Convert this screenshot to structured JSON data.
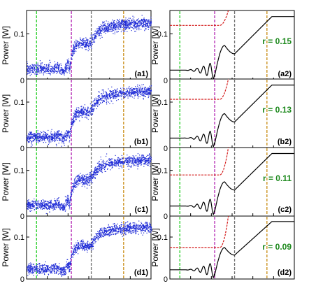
{
  "figure": {
    "y_axis_label": "Power [W]",
    "y_ticks": [
      {
        "value": 0,
        "label": "0"
      },
      {
        "value": 0.1,
        "label": "0.1"
      }
    ],
    "colors": {
      "data_points": "#1f2bd6",
      "model_curve": "#000000",
      "red_curve": "#d41a1a",
      "green_marker": "#22cc22",
      "magenta_marker": "#b020b0",
      "gray_marker": "#707070",
      "orange_marker": "#c88a10",
      "r_text": "#1f8a1f"
    }
  },
  "chart_data": [
    {
      "type": "scatter",
      "panel": "(a1)",
      "ylim": [
        0,
        0.15
      ],
      "xlim": [
        0,
        1
      ],
      "markers_x": [
        0.08,
        0.36,
        0.52,
        0.78
      ]
    },
    {
      "type": "line",
      "panel": "(a2)",
      "r_label": "r = 0.15",
      "ylim": [
        0,
        0.15
      ],
      "xlim": [
        0,
        1
      ],
      "red_plateau": 0.118,
      "markers_x": [
        0.08,
        0.36,
        0.52,
        0.78
      ]
    },
    {
      "type": "scatter",
      "panel": "(b1)",
      "ylim": [
        0,
        0.15
      ],
      "xlim": [
        0,
        1
      ],
      "markers_x": [
        0.08,
        0.36,
        0.52,
        0.78
      ]
    },
    {
      "type": "line",
      "panel": "(b2)",
      "r_label": "r = 0.13",
      "ylim": [
        0,
        0.15
      ],
      "xlim": [
        0,
        1
      ],
      "red_plateau": 0.106,
      "markers_x": [
        0.08,
        0.36,
        0.52,
        0.78
      ]
    },
    {
      "type": "scatter",
      "panel": "(c1)",
      "ylim": [
        0,
        0.15
      ],
      "xlim": [
        0,
        1
      ],
      "markers_x": [
        0.08,
        0.36,
        0.52,
        0.78
      ]
    },
    {
      "type": "line",
      "panel": "(c2)",
      "r_label": "r = 0.11",
      "ylim": [
        0,
        0.15
      ],
      "xlim": [
        0,
        1
      ],
      "red_plateau": 0.09,
      "markers_x": [
        0.08,
        0.36,
        0.52,
        0.78
      ]
    },
    {
      "type": "scatter",
      "panel": "(d1)",
      "ylim": [
        0,
        0.15
      ],
      "xlim": [
        0,
        1
      ],
      "markers_x": [
        0.08,
        0.36,
        0.52,
        0.78
      ]
    },
    {
      "type": "line",
      "panel": "(d2)",
      "r_label": "r = 0.09",
      "ylim": [
        0,
        0.15
      ],
      "xlim": [
        0,
        1
      ],
      "red_plateau": 0.075,
      "markers_x": [
        0.08,
        0.36,
        0.52,
        0.78
      ]
    }
  ]
}
